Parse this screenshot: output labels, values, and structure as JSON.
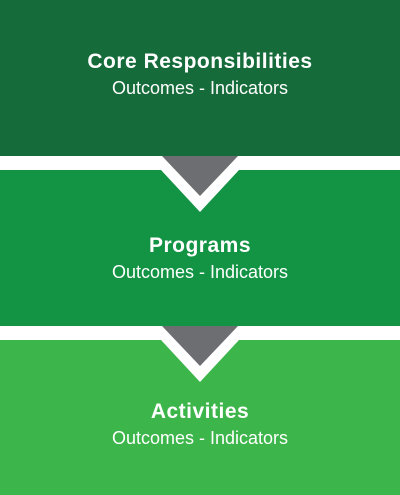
{
  "levels": [
    {
      "title": "Core Responsibilities",
      "subtitle": "Outcomes - Indicators",
      "color": "#166b3a"
    },
    {
      "title": "Programs",
      "subtitle": "Outcomes - Indicators",
      "color": "#129444"
    },
    {
      "title": "Activities",
      "subtitle": "Outcomes - Indicators",
      "color": "#3cb54a"
    }
  ],
  "arrow_color": "#6d6e71",
  "background_color": "#ffffff"
}
